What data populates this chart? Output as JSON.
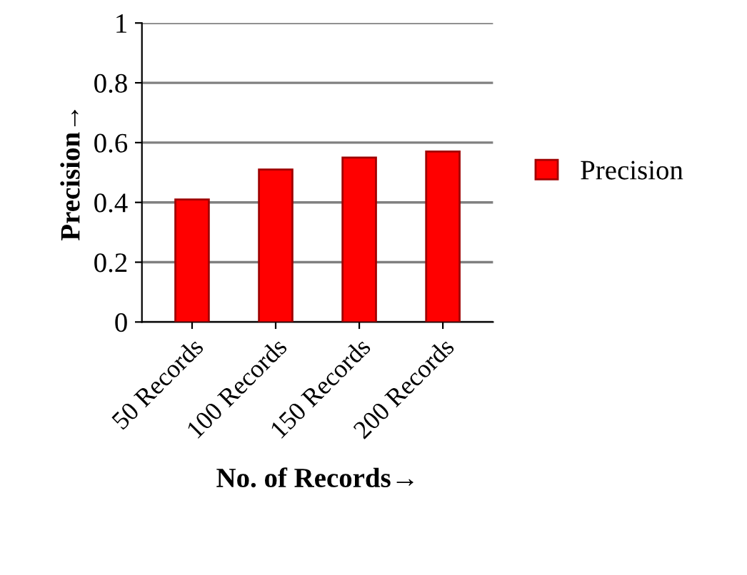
{
  "chart_data": {
    "type": "bar",
    "xlabel": "No. of Records→",
    "ylabel": "Precision→",
    "categories": [
      "50 Records",
      "100 Records",
      "150 Records",
      "200 Records"
    ],
    "series": [
      {
        "name": "Precision",
        "color": "#ff0000",
        "values": [
          0.41,
          0.51,
          0.55,
          0.57
        ]
      }
    ],
    "ylim": [
      0,
      1
    ],
    "yticks": [
      0,
      0.2,
      0.4,
      0.6,
      0.8,
      1
    ],
    "grid": "y",
    "legend": "right"
  }
}
